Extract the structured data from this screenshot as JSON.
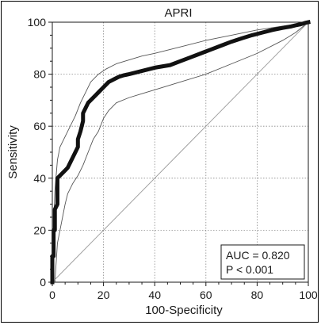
{
  "chart_data": {
    "type": "line",
    "title": "APRI",
    "xlabel": "100-Specificity",
    "ylabel": "Sensitivity",
    "xlim": [
      0,
      100
    ],
    "ylim": [
      0,
      100
    ],
    "xticks": [
      0,
      20,
      40,
      60,
      80,
      100
    ],
    "yticks": [
      0,
      20,
      40,
      60,
      80,
      100
    ],
    "grid": true,
    "annotation": [
      "AUC = 0.820",
      "P < 0.001"
    ],
    "series": [
      {
        "role": "roc",
        "x": [
          0,
          0,
          0.5,
          0.5,
          1,
          1,
          2,
          2,
          3,
          4,
          5,
          6,
          7,
          8,
          9,
          10,
          10,
          11,
          12,
          12,
          13,
          14,
          15,
          16,
          17,
          18,
          19,
          20,
          21,
          22,
          23,
          24,
          25,
          26,
          27,
          28,
          29,
          30,
          32,
          34,
          36,
          38,
          40,
          43,
          46,
          50,
          54,
          58,
          62,
          66,
          70,
          74,
          78,
          82,
          86,
          90,
          93,
          95,
          97,
          98,
          99,
          100
        ],
        "y": [
          0,
          10,
          10,
          20,
          20,
          28,
          30,
          40,
          41,
          42,
          43,
          44,
          46,
          48,
          50,
          52,
          55,
          58,
          62,
          65,
          67,
          69,
          70,
          71,
          72,
          73,
          74,
          75,
          76,
          77,
          77.5,
          78,
          78.5,
          79,
          79.3,
          79.6,
          79.8,
          80,
          80.5,
          81,
          81.5,
          82,
          82.5,
          83,
          83.5,
          85,
          86.5,
          88,
          89.5,
          91,
          92.5,
          93.8,
          95,
          96,
          97,
          97.8,
          98.3,
          98.8,
          99.2,
          99.5,
          99.8,
          100
        ]
      },
      {
        "role": "upper-ci",
        "x": [
          0,
          0.5,
          1,
          2,
          3,
          5,
          7,
          9,
          11,
          13,
          15,
          18,
          21,
          25,
          30,
          35,
          40,
          50,
          60,
          70,
          80,
          90,
          100
        ],
        "y": [
          0,
          22,
          35,
          47,
          52,
          56,
          60,
          64,
          69,
          73,
          77,
          80,
          82,
          84,
          85.5,
          87,
          88,
          90.5,
          93,
          95,
          97,
          98.5,
          100
        ]
      },
      {
        "role": "lower-ci",
        "x": [
          0,
          1,
          2,
          3,
          4,
          5,
          6,
          8,
          10,
          12,
          14,
          16,
          18,
          20,
          22,
          25,
          30,
          35,
          40,
          50,
          60,
          70,
          80,
          90,
          95,
          100
        ],
        "y": [
          0,
          0,
          15,
          20,
          25,
          30,
          34,
          38,
          41,
          45,
          50,
          55,
          58,
          63,
          66,
          69,
          71,
          72.5,
          74,
          77,
          80,
          84,
          88,
          93,
          96,
          100
        ]
      },
      {
        "role": "reference",
        "x": [
          0,
          100
        ],
        "y": [
          0,
          100
        ]
      }
    ]
  }
}
